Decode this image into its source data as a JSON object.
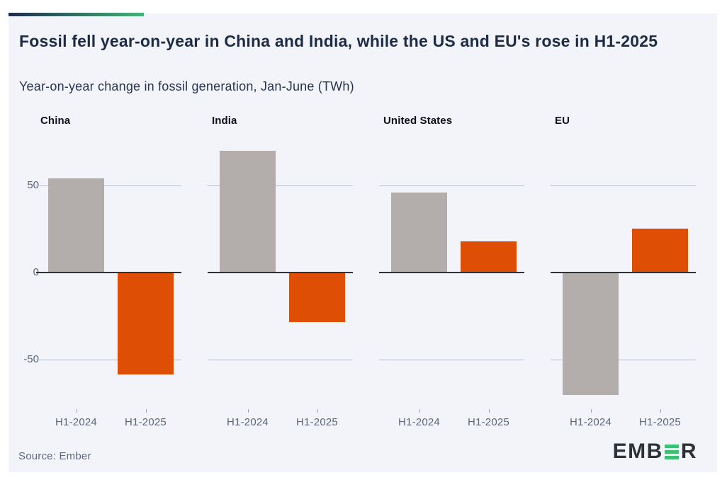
{
  "header": {
    "title": "Fossil fell year-on-year in China and India, while the US and EU's rose in H1-2025",
    "subtitle": "Year-on-year change in fossil generation, Jan-June (TWh)"
  },
  "footer": {
    "source": "Source: Ember",
    "logo_left": "EMB",
    "logo_right": "R",
    "logo_e_icon": "three-green-bars"
  },
  "colors": {
    "accent_gradient_start": "#1f2b4d",
    "accent_gradient_end": "#45b377",
    "card_background": "#f3f4f9",
    "title_text": "#1d2b45",
    "axis_text": "#5c6678",
    "gridline": "#b9bfcc",
    "zero_line": "#2e3136",
    "bar_h1_2024": "#b3aeab",
    "bar_h1_2025": "#de4e04",
    "logo_green": "#3cc173",
    "logo_dark": "#2e3237"
  },
  "chart_data": {
    "type": "bar",
    "title": "Fossil fell year-on-year in China and India, while the US and EU's rose in H1-2025",
    "subtitle": "Year-on-year change in fossil generation, Jan-June (TWh)",
    "unit": "TWh",
    "layout": "four small-multiple panels, shared y axis at left, grid on (y gridlines at 50 and -50, dark zero line), no legend",
    "categories": [
      "H1-2024",
      "H1-2025"
    ],
    "y_axis": {
      "ticks": [
        50,
        0,
        -50
      ],
      "range": [
        -77,
        79
      ]
    },
    "panels": [
      {
        "name": "China",
        "values": [
          54,
          -58
        ]
      },
      {
        "name": "India",
        "values": [
          70,
          -28
        ]
      },
      {
        "name": "United States",
        "values": [
          46,
          18
        ]
      },
      {
        "name": "EU",
        "values": [
          -70,
          25
        ]
      }
    ],
    "series_colors": {
      "H1-2024": "#b3aeab",
      "H1-2025": "#de4e04"
    }
  }
}
